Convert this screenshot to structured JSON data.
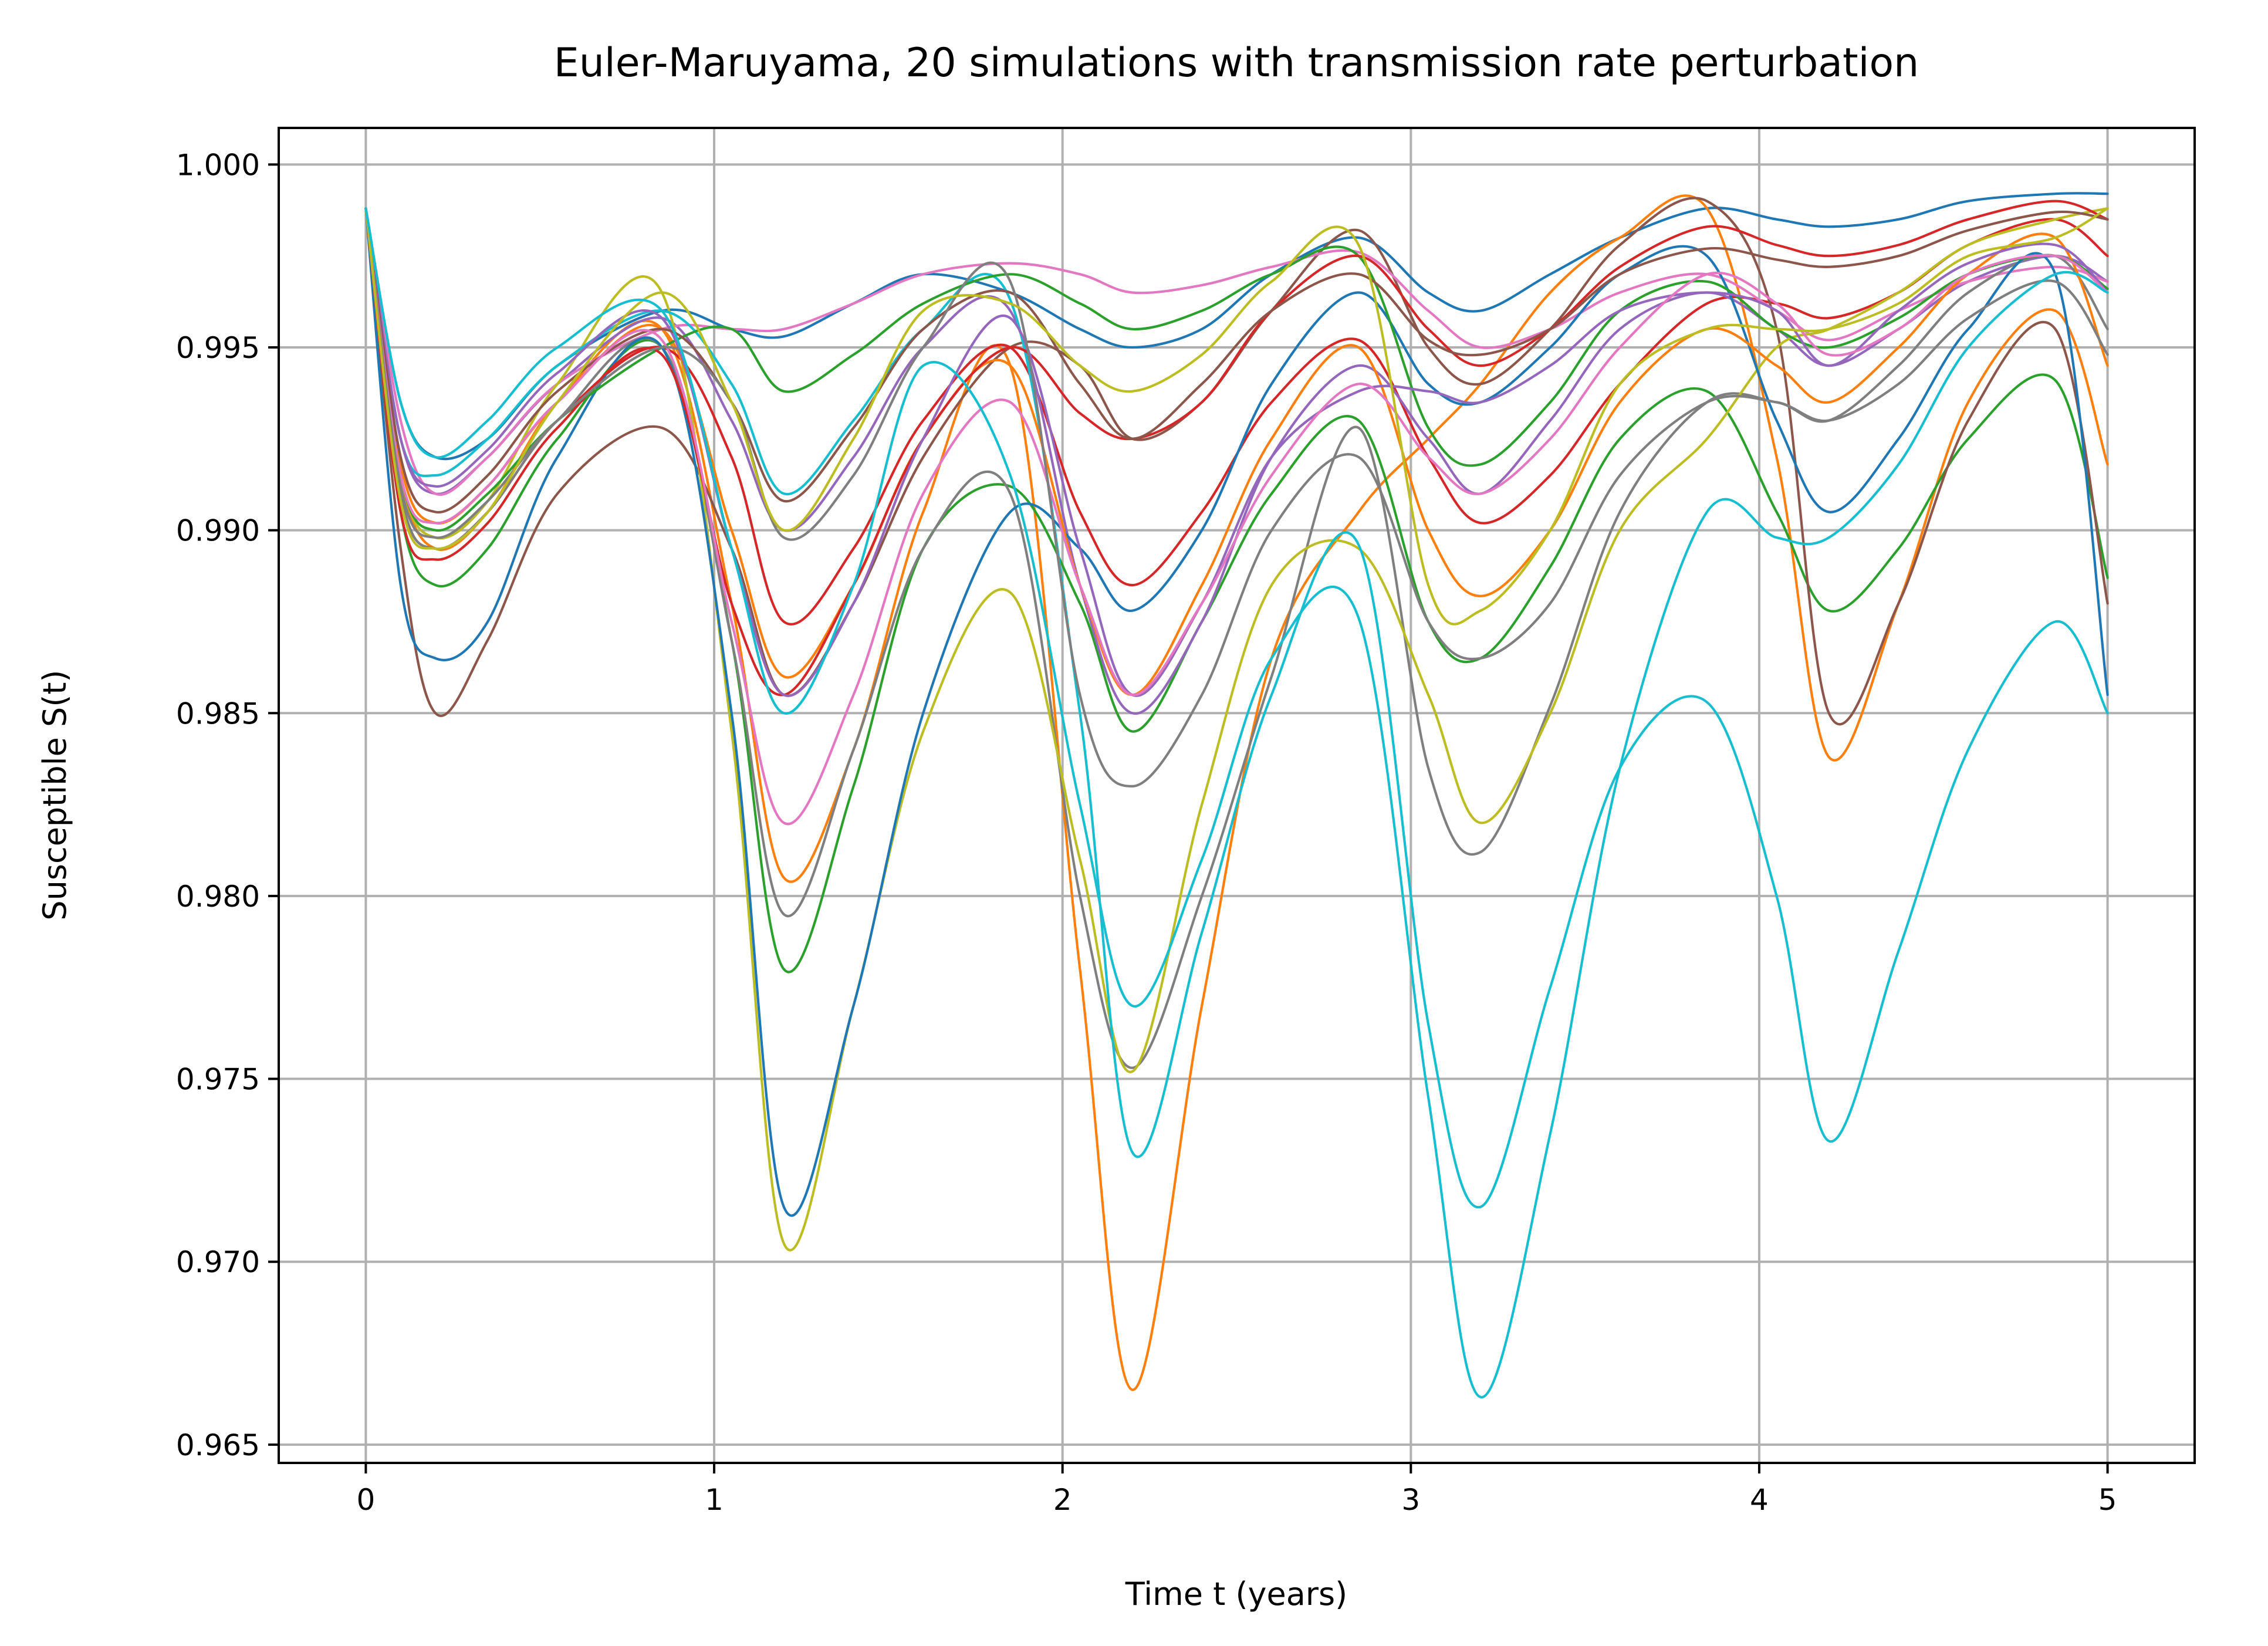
{
  "chart_data": {
    "type": "line",
    "title": "Euler-Maruyama, 20 simulations with transmission rate perturbation",
    "xlabel": "Time t (years)",
    "ylabel": "Susceptible S(t)",
    "xlim": [
      -0.25,
      5.25
    ],
    "ylim": [
      0.9645,
      1.001
    ],
    "xticks": [
      0,
      1,
      2,
      3,
      4,
      5
    ],
    "xtick_labels": [
      "0",
      "1",
      "2",
      "3",
      "4",
      "5"
    ],
    "yticks": [
      0.965,
      0.97,
      0.975,
      0.98,
      0.985,
      0.99,
      0.995,
      1.0
    ],
    "ytick_labels": [
      "0.965",
      "0.970",
      "0.975",
      "0.980",
      "0.985",
      "0.990",
      "0.995",
      "1.000"
    ],
    "grid": true,
    "legend": "none",
    "x": [
      0,
      0.1,
      0.2,
      0.35,
      0.55,
      0.85,
      1.05,
      1.2,
      1.4,
      1.6,
      1.85,
      2.05,
      2.2,
      2.4,
      2.6,
      2.85,
      3.05,
      3.2,
      3.4,
      3.6,
      3.85,
      4.05,
      4.2,
      4.4,
      4.6,
      4.85,
      5.0
    ],
    "series": [
      {
        "color": "#1f77b4",
        "values": [
          0.9988,
          0.9935,
          0.992,
          0.9925,
          0.9945,
          0.996,
          0.9955,
          0.9953,
          0.9962,
          0.997,
          0.9965,
          0.9955,
          0.995,
          0.9955,
          0.997,
          0.998,
          0.9965,
          0.996,
          0.997,
          0.998,
          0.9988,
          0.9985,
          0.9983,
          0.9985,
          0.999,
          0.9992,
          0.9992
        ]
      },
      {
        "color": "#ff7f0e",
        "values": [
          0.9988,
          0.9915,
          0.9895,
          0.9905,
          0.9935,
          0.9955,
          0.988,
          0.9805,
          0.984,
          0.9905,
          0.9945,
          0.978,
          0.9665,
          0.977,
          0.9865,
          0.9905,
          0.9925,
          0.994,
          0.9965,
          0.998,
          0.9988,
          0.992,
          0.9838,
          0.988,
          0.9935,
          0.996,
          0.9918
        ]
      },
      {
        "color": "#2ca02c",
        "values": [
          0.9988,
          0.9905,
          0.9885,
          0.9895,
          0.9925,
          0.995,
          0.987,
          0.978,
          0.983,
          0.9895,
          0.9912,
          0.988,
          0.9845,
          0.9875,
          0.991,
          0.993,
          0.9875,
          0.9865,
          0.989,
          0.9925,
          0.9938,
          0.9905,
          0.9878,
          0.9895,
          0.9925,
          0.9941,
          0.9887
        ]
      },
      {
        "color": "#d62728",
        "values": [
          0.9988,
          0.991,
          0.9895,
          0.9905,
          0.993,
          0.995,
          0.992,
          0.9875,
          0.9895,
          0.993,
          0.995,
          0.9905,
          0.9885,
          0.9905,
          0.9935,
          0.9952,
          0.992,
          0.9902,
          0.9915,
          0.994,
          0.9962,
          0.9962,
          0.9958,
          0.9965,
          0.9978,
          0.9985,
          0.9975
        ]
      },
      {
        "color": "#9467bd",
        "values": [
          0.9988,
          0.9925,
          0.991,
          0.992,
          0.994,
          0.9958,
          0.993,
          0.99,
          0.992,
          0.995,
          0.996,
          0.9885,
          0.985,
          0.9875,
          0.992,
          0.9945,
          0.9925,
          0.991,
          0.993,
          0.9955,
          0.9965,
          0.9955,
          0.9945,
          0.9955,
          0.9968,
          0.9975,
          0.9968
        ]
      },
      {
        "color": "#8c564b",
        "values": [
          0.9988,
          0.9895,
          0.985,
          0.987,
          0.991,
          0.9928,
          0.9895,
          0.9855,
          0.988,
          0.992,
          0.995,
          0.9945,
          0.9925,
          0.9935,
          0.996,
          0.9982,
          0.995,
          0.994,
          0.9955,
          0.9978,
          0.999,
          0.9955,
          0.985,
          0.988,
          0.993,
          0.9955,
          0.988
        ]
      },
      {
        "color": "#e377c2",
        "values": [
          0.9988,
          0.993,
          0.991,
          0.992,
          0.994,
          0.9955,
          0.9955,
          0.9955,
          0.9962,
          0.997,
          0.9973,
          0.997,
          0.9965,
          0.9967,
          0.9972,
          0.9976,
          0.996,
          0.995,
          0.9955,
          0.9965,
          0.997,
          0.996,
          0.9952,
          0.996,
          0.9968,
          0.9972,
          0.9968
        ]
      },
      {
        "color": "#7f7f7f",
        "values": [
          0.9988,
          0.991,
          0.9895,
          0.9905,
          0.993,
          0.995,
          0.987,
          0.9795,
          0.984,
          0.9895,
          0.991,
          0.98,
          0.9753,
          0.98,
          0.986,
          0.9928,
          0.9835,
          0.9812,
          0.9852,
          0.9905,
          0.9935,
          0.9935,
          0.993,
          0.9945,
          0.9965,
          0.9975,
          0.9955
        ]
      },
      {
        "color": "#bcbd22",
        "values": [
          0.9988,
          0.9915,
          0.9898,
          0.9908,
          0.994,
          0.9965,
          0.9845,
          0.9705,
          0.977,
          0.9845,
          0.9883,
          0.981,
          0.9752,
          0.9825,
          0.9885,
          0.9895,
          0.9855,
          0.982,
          0.985,
          0.99,
          0.9925,
          0.995,
          0.9955,
          0.9965,
          0.9978,
          0.9985,
          0.9988
        ]
      },
      {
        "color": "#17becf",
        "values": [
          0.9988,
          0.9925,
          0.9915,
          0.9925,
          0.9945,
          0.996,
          0.994,
          0.991,
          0.993,
          0.9955,
          0.9963,
          0.985,
          0.973,
          0.979,
          0.9855,
          0.9896,
          0.9765,
          0.9715,
          0.9775,
          0.9835,
          0.9853,
          0.98,
          0.9733,
          0.9785,
          0.984,
          0.9875,
          0.985
        ]
      },
      {
        "color": "#1f77b4",
        "values": [
          0.9988,
          0.9885,
          0.9865,
          0.9875,
          0.992,
          0.995,
          0.985,
          0.9715,
          0.977,
          0.985,
          0.9905,
          0.9895,
          0.9878,
          0.99,
          0.994,
          0.9965,
          0.994,
          0.9935,
          0.995,
          0.997,
          0.9975,
          0.993,
          0.9905,
          0.9925,
          0.9955,
          0.997,
          0.9855
        ]
      },
      {
        "color": "#ff7f0e",
        "values": [
          0.9988,
          0.9918,
          0.9902,
          0.9912,
          0.9935,
          0.9955,
          0.99,
          0.986,
          0.9885,
          0.9925,
          0.9945,
          0.9885,
          0.9855,
          0.9885,
          0.9925,
          0.995,
          0.99,
          0.9882,
          0.99,
          0.9935,
          0.9955,
          0.9945,
          0.9935,
          0.995,
          0.997,
          0.998,
          0.9945
        ]
      },
      {
        "color": "#2ca02c",
        "values": [
          0.9988,
          0.9915,
          0.99,
          0.991,
          0.993,
          0.995,
          0.9955,
          0.9938,
          0.9948,
          0.9962,
          0.997,
          0.9962,
          0.9955,
          0.996,
          0.997,
          0.9975,
          0.9928,
          0.9918,
          0.9935,
          0.996,
          0.9968,
          0.9955,
          0.995,
          0.9958,
          0.997,
          0.9975,
          0.9966
        ]
      },
      {
        "color": "#d62728",
        "values": [
          0.9988,
          0.9905,
          0.9892,
          0.9902,
          0.9928,
          0.9948,
          0.988,
          0.9855,
          0.9885,
          0.9925,
          0.995,
          0.9932,
          0.9925,
          0.9935,
          0.996,
          0.9975,
          0.9955,
          0.9945,
          0.9955,
          0.9972,
          0.9983,
          0.9978,
          0.9975,
          0.9978,
          0.9985,
          0.999,
          0.9985
        ]
      },
      {
        "color": "#9467bd",
        "values": [
          0.9988,
          0.9925,
          0.9912,
          0.9922,
          0.9943,
          0.9958,
          0.9895,
          0.9855,
          0.988,
          0.9925,
          0.9958,
          0.9895,
          0.9855,
          0.988,
          0.992,
          0.9938,
          0.9938,
          0.9935,
          0.9945,
          0.996,
          0.9965,
          0.996,
          0.9945,
          0.996,
          0.9973,
          0.9978,
          0.9965
        ]
      },
      {
        "color": "#8c564b",
        "values": [
          0.9988,
          0.992,
          0.9905,
          0.9915,
          0.9938,
          0.9955,
          0.9935,
          0.9908,
          0.9928,
          0.9955,
          0.9965,
          0.994,
          0.9925,
          0.994,
          0.996,
          0.997,
          0.9952,
          0.9948,
          0.9955,
          0.997,
          0.9977,
          0.9974,
          0.9972,
          0.9975,
          0.9982,
          0.9987,
          0.9985
        ]
      },
      {
        "color": "#e377c2",
        "values": [
          0.9988,
          0.9915,
          0.9902,
          0.9912,
          0.9935,
          0.9952,
          0.9875,
          0.982,
          0.9855,
          0.991,
          0.9935,
          0.9885,
          0.9855,
          0.988,
          0.9915,
          0.994,
          0.992,
          0.991,
          0.9925,
          0.995,
          0.997,
          0.9962,
          0.9948,
          0.9955,
          0.997,
          0.9975,
          0.9965
        ]
      },
      {
        "color": "#7f7f7f",
        "values": [
          0.9988,
          0.9912,
          0.9898,
          0.9908,
          0.993,
          0.995,
          0.9935,
          0.9898,
          0.9915,
          0.995,
          0.9968,
          0.9855,
          0.983,
          0.9855,
          0.99,
          0.992,
          0.9875,
          0.9865,
          0.988,
          0.9915,
          0.9935,
          0.9935,
          0.993,
          0.994,
          0.9958,
          0.9968,
          0.9948
        ]
      },
      {
        "color": "#bcbd22",
        "values": [
          0.9988,
          0.9908,
          0.9895,
          0.9905,
          0.9935,
          0.9965,
          0.9935,
          0.99,
          0.9925,
          0.996,
          0.9962,
          0.9945,
          0.9938,
          0.9948,
          0.9968,
          0.9978,
          0.9885,
          0.9878,
          0.99,
          0.994,
          0.9955,
          0.9955,
          0.9955,
          0.9962,
          0.9975,
          0.998,
          0.9988
        ]
      },
      {
        "color": "#17becf",
        "values": [
          0.9988,
          0.9935,
          0.992,
          0.993,
          0.995,
          0.996,
          0.9895,
          0.985,
          0.9885,
          0.9945,
          0.9915,
          0.9825,
          0.977,
          0.981,
          0.9865,
          0.9876,
          0.9745,
          0.9663,
          0.9735,
          0.9835,
          0.9905,
          0.9898,
          0.9898,
          0.9918,
          0.995,
          0.997,
          0.9965
        ]
      }
    ]
  }
}
